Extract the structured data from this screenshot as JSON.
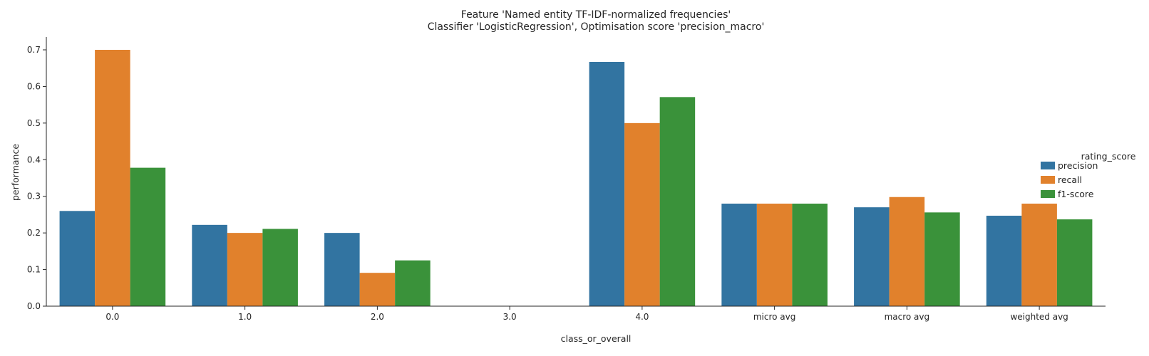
{
  "chart_data": {
    "type": "bar",
    "title": "Feature 'Named entity TF-IDF-normalized frequencies'",
    "subtitle": "Classifier 'LogisticRegression', Optimisation score 'precision_macro'",
    "xlabel": "class_or_overall",
    "ylabel": "performance",
    "ylim": [
      0,
      0.735
    ],
    "yticks": [
      "0.0",
      "0.1",
      "0.2",
      "0.3",
      "0.4",
      "0.5",
      "0.6",
      "0.7"
    ],
    "categories": [
      "0.0",
      "1.0",
      "2.0",
      "3.0",
      "4.0",
      "micro avg",
      "macro avg",
      "weighted avg"
    ],
    "legend_title": "rating_score",
    "legend_position": "right",
    "grid": false,
    "series": [
      {
        "name": "precision",
        "color": "#3274a1",
        "values": [
          0.26,
          0.222,
          0.2,
          0.0,
          0.667,
          0.28,
          0.27,
          0.247
        ]
      },
      {
        "name": "recall",
        "color": "#e1812c",
        "values": [
          0.7,
          0.2,
          0.091,
          0.0,
          0.5,
          0.28,
          0.298,
          0.28
        ]
      },
      {
        "name": "f1-score",
        "color": "#3a923a",
        "values": [
          0.378,
          0.211,
          0.125,
          0.0,
          0.571,
          0.28,
          0.256,
          0.237
        ]
      }
    ]
  }
}
